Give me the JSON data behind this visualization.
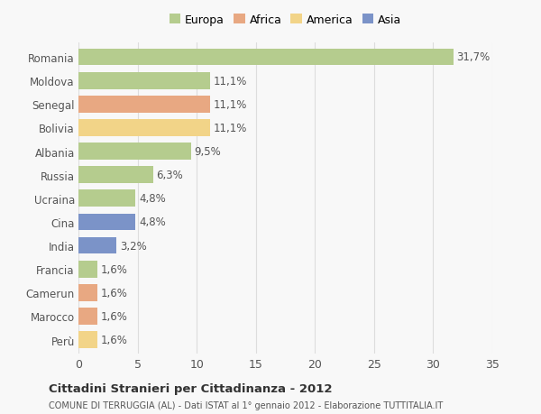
{
  "countries": [
    "Romania",
    "Moldova",
    "Senegal",
    "Bolivia",
    "Albania",
    "Russia",
    "Ucraina",
    "Cina",
    "India",
    "Francia",
    "Camerun",
    "Marocco",
    "Perù"
  ],
  "values": [
    31.7,
    11.1,
    11.1,
    11.1,
    9.5,
    6.3,
    4.8,
    4.8,
    3.2,
    1.6,
    1.6,
    1.6,
    1.6
  ],
  "labels": [
    "31,7%",
    "11,1%",
    "11,1%",
    "11,1%",
    "9,5%",
    "6,3%",
    "4,8%",
    "4,8%",
    "3,2%",
    "1,6%",
    "1,6%",
    "1,6%",
    "1,6%"
  ],
  "colors": [
    "#b5cc8e",
    "#b5cc8e",
    "#e8a882",
    "#f2d488",
    "#b5cc8e",
    "#b5cc8e",
    "#b5cc8e",
    "#7b93c8",
    "#7b93c8",
    "#b5cc8e",
    "#e8a882",
    "#e8a882",
    "#f2d488"
  ],
  "legend_labels": [
    "Europa",
    "Africa",
    "America",
    "Asia"
  ],
  "legend_colors": [
    "#b5cc8e",
    "#e8a882",
    "#f2d488",
    "#7b93c8"
  ],
  "xlim": [
    0,
    35
  ],
  "xticks": [
    0,
    5,
    10,
    15,
    20,
    25,
    30,
    35
  ],
  "title": "Cittadini Stranieri per Cittadinanza - 2012",
  "subtitle": "COMUNE DI TERRUGGIA (AL) - Dati ISTAT al 1° gennaio 2012 - Elaborazione TUTTITALIA.IT",
  "background_color": "#f8f8f8",
  "bar_height": 0.72,
  "grid_color": "#dddddd",
  "text_color": "#555555",
  "label_fontsize": 8.5,
  "ytick_fontsize": 8.5,
  "xtick_fontsize": 9
}
